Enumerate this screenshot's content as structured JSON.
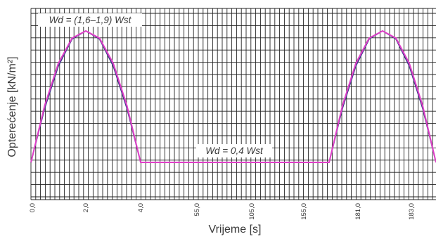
{
  "chart_data": {
    "type": "line",
    "xlabel": "Vrijeme [s]",
    "ylabel": "Opterećenje [kN/m²]",
    "categories": [
      "0,0",
      "2,0",
      "4,0",
      "55,0",
      "105,0",
      "155,0",
      "181,0",
      "183,0"
    ],
    "grid": true,
    "annotations": [
      {
        "text": "Wd = (1,6–1,9) Wst"
      },
      {
        "text": "Wd = 0,4 Wst"
      }
    ],
    "series": [
      {
        "color": "#e040c8",
        "x": [
          0,
          0.5,
          1.0,
          1.5,
          2.0,
          2.5,
          3.0,
          3.5,
          4.0,
          55,
          105,
          155,
          180.0,
          180.5,
          181.0,
          181.5,
          182.0,
          182.5,
          183.0,
          183.5,
          184.0
        ],
        "y": [
          0.4,
          1.03,
          1.5,
          1.78,
          1.86,
          1.78,
          1.5,
          1.03,
          0.4,
          0.4,
          0.4,
          0.4,
          0.4,
          1.03,
          1.5,
          1.78,
          1.86,
          1.78,
          1.5,
          1.03,
          0.4
        ]
      },
      {
        "color": "#3a3a88",
        "x": [
          0,
          0.5,
          1.0,
          1.5,
          2.0,
          2.5,
          3.0,
          3.5,
          4.0,
          180.0,
          180.5,
          181.0,
          181.5,
          182.0,
          182.5,
          183.0,
          183.5,
          184.0
        ],
        "y": [
          0.4,
          1.0,
          1.47,
          1.77,
          1.86,
          1.77,
          1.47,
          1.0,
          0.4,
          0.4,
          1.0,
          1.47,
          1.77,
          1.86,
          1.77,
          1.47,
          1.0,
          0.4
        ]
      }
    ]
  }
}
